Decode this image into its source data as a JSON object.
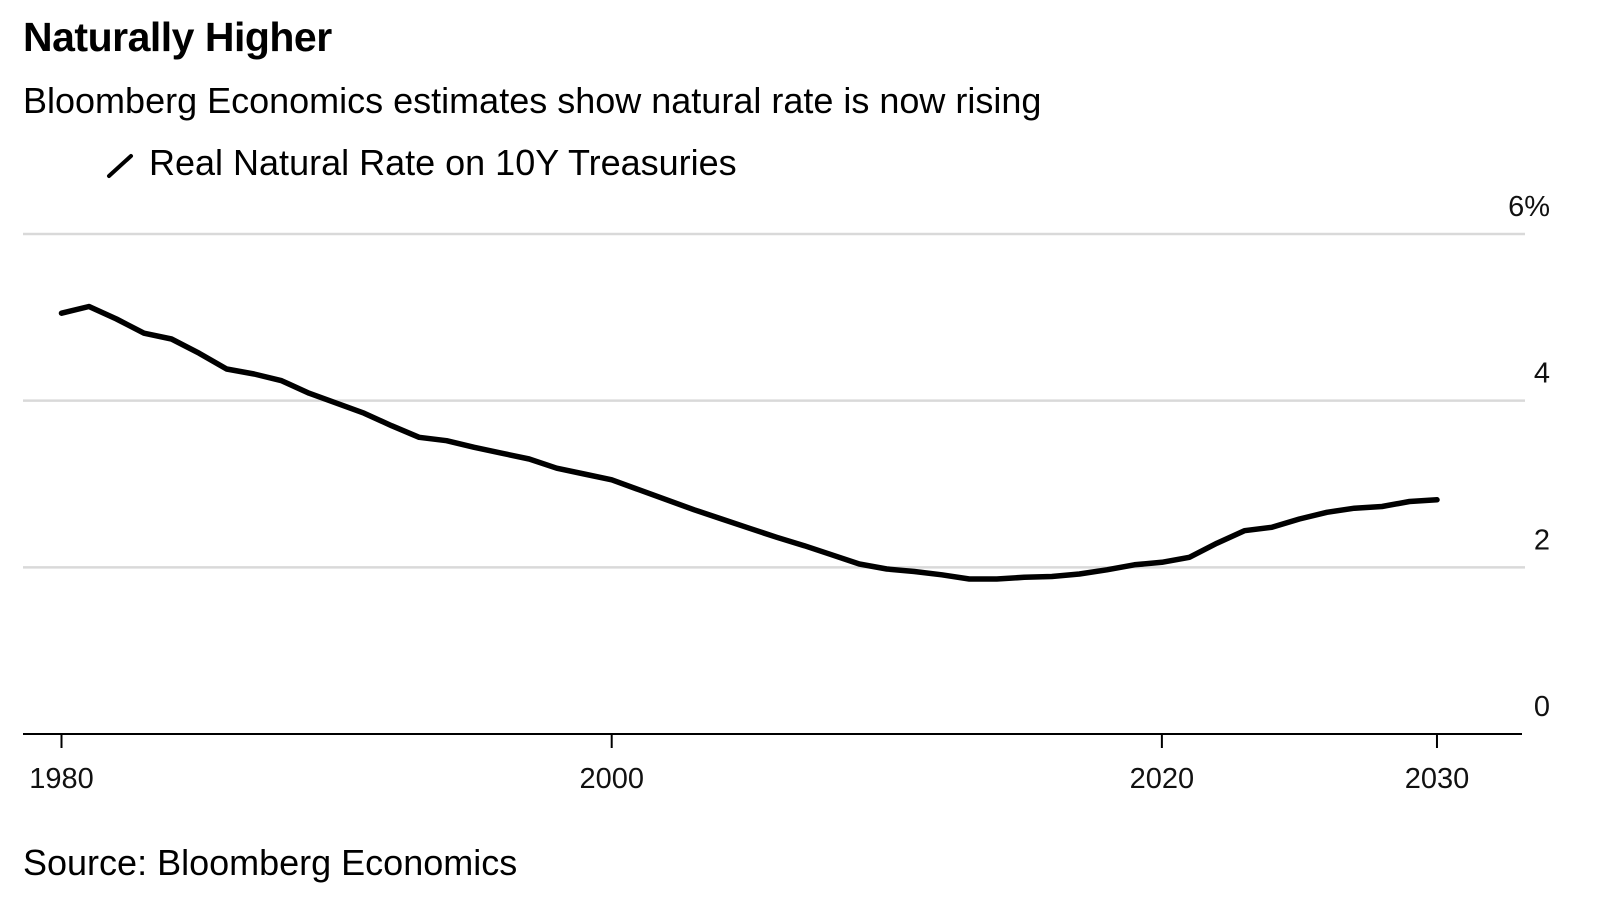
{
  "chart_data": {
    "type": "line",
    "title": "Naturally Higher",
    "subtitle": "Bloomberg Economics estimates show natural rate is now rising",
    "source": "Source: Bloomberg Economics",
    "xlabel": "",
    "ylabel": "",
    "xlim": [
      1978.6,
      2033.2
    ],
    "ylim": [
      0,
      6
    ],
    "x_ticks": [
      1980,
      2000,
      2020,
      2030
    ],
    "x_tick_labels": [
      "1980",
      "2000",
      "2020",
      "2030"
    ],
    "y_ticks": [
      0,
      2,
      4,
      6
    ],
    "y_tick_labels": [
      "0",
      "2",
      "4",
      "6%"
    ],
    "legend_position": "top-left",
    "grid": true,
    "series": [
      {
        "name": "Real Natural Rate on 10Y Treasuries",
        "color": "#000000",
        "x": [
          1980,
          1981,
          1982,
          1983,
          1984,
          1985,
          1986,
          1987,
          1988,
          1989,
          1990,
          1991,
          1992,
          1993,
          1994,
          1995,
          1996,
          1997,
          1998,
          1999,
          2000,
          2001,
          2002,
          2003,
          2004,
          2005,
          2006,
          2007,
          2008,
          2009,
          2010,
          2011,
          2012,
          2013,
          2014,
          2015,
          2016,
          2017,
          2018,
          2019,
          2020,
          2021,
          2022,
          2023,
          2024,
          2025,
          2026,
          2027,
          2028,
          2029,
          2030
        ],
        "values": [
          5.05,
          5.13,
          4.98,
          4.81,
          4.74,
          4.57,
          4.38,
          4.32,
          4.24,
          4.09,
          3.97,
          3.85,
          3.7,
          3.56,
          3.52,
          3.44,
          3.37,
          3.3,
          3.19,
          3.12,
          3.05,
          2.93,
          2.81,
          2.69,
          2.58,
          2.47,
          2.36,
          2.26,
          2.15,
          2.04,
          1.98,
          1.95,
          1.91,
          1.86,
          1.86,
          1.88,
          1.89,
          1.92,
          1.97,
          2.03,
          2.06,
          2.12,
          2.29,
          2.44,
          2.48,
          2.58,
          2.66,
          2.71,
          2.73,
          2.79,
          2.81
        ]
      }
    ]
  }
}
